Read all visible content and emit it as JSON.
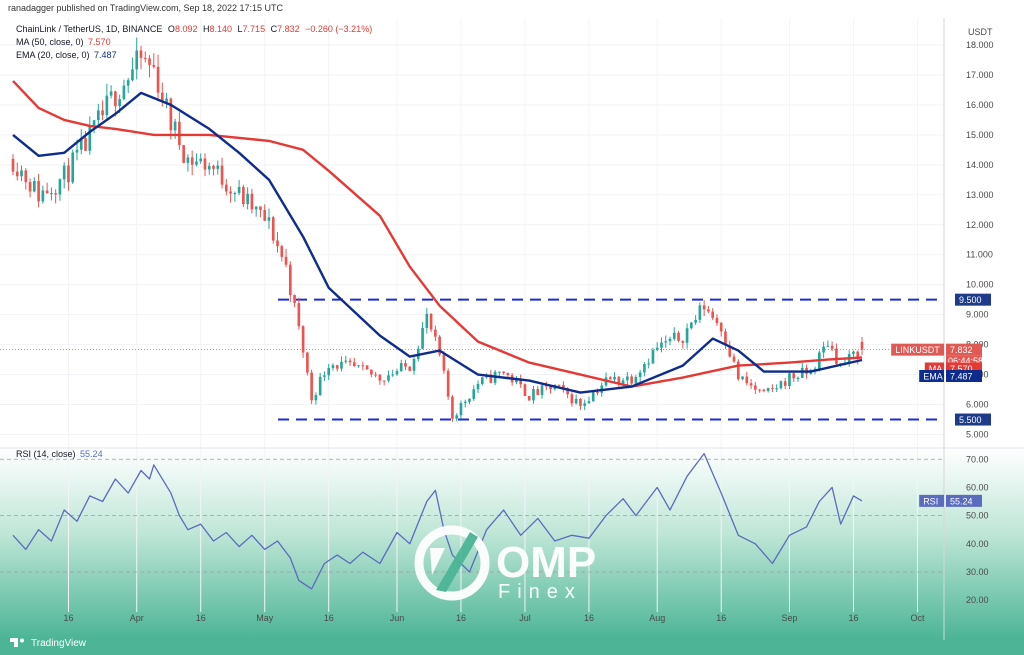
{
  "publish_line": "ranadagger published on TradingView.com, Sep 18, 2022 17:15 UTC",
  "legend": {
    "symbol": "ChainLink / TetherUS, 1D, BINANCE",
    "o_label": "O",
    "o_value": "8.092",
    "h_label": "H",
    "h_value": "8.140",
    "l_label": "L",
    "l_value": "7.715",
    "c_label": "C",
    "c_value": "7.832",
    "change": "−0.260 (−3.21%)",
    "ma_label": "MA (50, close, 0)",
    "ma_value": "7.570",
    "ema_label": "EMA (20, close, 0)",
    "ema_value": "7.487",
    "rsi_label": "RSI (14, close)",
    "rsi_value": "55.24"
  },
  "colors": {
    "up": "#26a69a",
    "down": "#ef5350",
    "ma": "#e53935",
    "ema": "#0d2c8c",
    "rsi_line": "#5b6bbf",
    "level_line": "#1f2bd4",
    "rsi_panel_bottom": "#4db596",
    "price_tag": "#e05a55",
    "level_tag": "#1e3a8a"
  },
  "chart_data": [
    {
      "type": "candlestick",
      "title": "ChainLink / TetherUS, 1D, BINANCE",
      "price_unit": "USDT",
      "y_axis_labels": [
        "18.000",
        "17.000",
        "16.000",
        "15.000",
        "14.000",
        "13.000",
        "12.000",
        "11.000",
        "10.000",
        "9.000",
        "8.000",
        "7.000",
        "6.000",
        "5.000"
      ],
      "x_axis_labels": [
        "16",
        "Apr",
        "16",
        "May",
        "16",
        "Jun",
        "16",
        "Jul",
        "16",
        "Aug",
        "16",
        "Sep",
        "16",
        "Oct"
      ],
      "ylim": [
        4.55,
        18.9
      ],
      "horizontal_levels": [
        {
          "value": 9.5,
          "label": "9.500"
        },
        {
          "value": 5.5,
          "label": "5.500"
        }
      ],
      "price_tags": [
        {
          "name": "LINKUSDT",
          "value": "7.832",
          "sub": "06:44:58"
        },
        {
          "name": "MA",
          "value": "7.570"
        },
        {
          "name": "EMA",
          "value": "7.487"
        }
      ],
      "close_series": [
        {
          "date": "Mar 03",
          "close": 14.2
        },
        {
          "date": "Mar 09",
          "close": 13.0
        },
        {
          "date": "Mar 15",
          "close": 13.6
        },
        {
          "date": "Mar 21",
          "close": 14.9
        },
        {
          "date": "Mar 27",
          "close": 16.4
        },
        {
          "date": "Apr 02",
          "close": 17.5
        },
        {
          "date": "Apr 05",
          "close": 17.2
        },
        {
          "date": "Apr 09",
          "close": 15.4
        },
        {
          "date": "Apr 13",
          "close": 14.2
        },
        {
          "date": "Apr 18",
          "close": 14.0
        },
        {
          "date": "Apr 25",
          "close": 13.0
        },
        {
          "date": "May 02",
          "close": 12.0
        },
        {
          "date": "May 06",
          "close": 10.6
        },
        {
          "date": "May 10",
          "close": 7.8
        },
        {
          "date": "May 12",
          "close": 6.2
        },
        {
          "date": "May 16",
          "close": 7.4
        },
        {
          "date": "May 22",
          "close": 7.2
        },
        {
          "date": "May 28",
          "close": 6.9
        },
        {
          "date": "Jun 04",
          "close": 7.3
        },
        {
          "date": "Jun 08",
          "close": 8.9
        },
        {
          "date": "Jun 11",
          "close": 7.6
        },
        {
          "date": "Jun 14",
          "close": 5.6
        },
        {
          "date": "Jun 20",
          "close": 6.7
        },
        {
          "date": "Jun 26",
          "close": 7.1
        },
        {
          "date": "Jul 02",
          "close": 6.3
        },
        {
          "date": "Jul 08",
          "close": 6.6
        },
        {
          "date": "Jul 14",
          "close": 6.0
        },
        {
          "date": "Jul 20",
          "close": 6.8
        },
        {
          "date": "Jul 26",
          "close": 6.9
        },
        {
          "date": "Aug 01",
          "close": 7.9
        },
        {
          "date": "Aug 07",
          "close": 8.3
        },
        {
          "date": "Aug 12",
          "close": 9.3
        },
        {
          "date": "Aug 16",
          "close": 8.6
        },
        {
          "date": "Aug 20",
          "close": 6.9
        },
        {
          "date": "Aug 26",
          "close": 6.3
        },
        {
          "date": "Sep 01",
          "close": 6.9
        },
        {
          "date": "Sep 06",
          "close": 7.1
        },
        {
          "date": "Sep 10",
          "close": 8.1
        },
        {
          "date": "Sep 13",
          "close": 7.3
        },
        {
          "date": "Sep 18",
          "close": 7.832
        }
      ],
      "ma_series": [
        {
          "date": "Mar 03",
          "value": 16.8
        },
        {
          "date": "Mar 09",
          "value": 15.9
        },
        {
          "date": "Mar 15",
          "value": 15.5
        },
        {
          "date": "Mar 21",
          "value": 15.3
        },
        {
          "date": "Mar 27",
          "value": 15.2
        },
        {
          "date": "Apr 05",
          "value": 15.0
        },
        {
          "date": "Apr 18",
          "value": 15.0
        },
        {
          "date": "May 02",
          "value": 14.8
        },
        {
          "date": "May 10",
          "value": 14.5
        },
        {
          "date": "May 16",
          "value": 13.8
        },
        {
          "date": "May 28",
          "value": 12.3
        },
        {
          "date": "Jun 04",
          "value": 10.6
        },
        {
          "date": "Jun 11",
          "value": 9.3
        },
        {
          "date": "Jun 20",
          "value": 8.1
        },
        {
          "date": "Jul 02",
          "value": 7.4
        },
        {
          "date": "Jul 14",
          "value": 7.0
        },
        {
          "date": "Jul 26",
          "value": 6.6
        },
        {
          "date": "Aug 07",
          "value": 6.9
        },
        {
          "date": "Aug 20",
          "value": 7.3
        },
        {
          "date": "Sep 01",
          "value": 7.4
        },
        {
          "date": "Sep 10",
          "value": 7.5
        },
        {
          "date": "Sep 18",
          "value": 7.57
        }
      ],
      "ema_series": [
        {
          "date": "Mar 03",
          "value": 15.0
        },
        {
          "date": "Mar 09",
          "value": 14.3
        },
        {
          "date": "Mar 15",
          "value": 14.4
        },
        {
          "date": "Mar 21",
          "value": 15.1
        },
        {
          "date": "Mar 27",
          "value": 15.7
        },
        {
          "date": "Apr 02",
          "value": 16.4
        },
        {
          "date": "Apr 09",
          "value": 16.0
        },
        {
          "date": "Apr 18",
          "value": 15.2
        },
        {
          "date": "Apr 25",
          "value": 14.4
        },
        {
          "date": "May 02",
          "value": 13.5
        },
        {
          "date": "May 10",
          "value": 11.6
        },
        {
          "date": "May 16",
          "value": 9.9
        },
        {
          "date": "May 28",
          "value": 8.3
        },
        {
          "date": "Jun 04",
          "value": 7.6
        },
        {
          "date": "Jun 11",
          "value": 7.8
        },
        {
          "date": "Jun 20",
          "value": 7.0
        },
        {
          "date": "Jul 02",
          "value": 6.8
        },
        {
          "date": "Jul 14",
          "value": 6.4
        },
        {
          "date": "Jul 26",
          "value": 6.6
        },
        {
          "date": "Aug 07",
          "value": 7.3
        },
        {
          "date": "Aug 14",
          "value": 8.2
        },
        {
          "date": "Aug 20",
          "value": 7.8
        },
        {
          "date": "Aug 26",
          "value": 7.1
        },
        {
          "date": "Sep 06",
          "value": 7.1
        },
        {
          "date": "Sep 18",
          "value": 7.487
        }
      ]
    },
    {
      "type": "line",
      "title": "RSI (14, close)",
      "y_axis_labels": [
        "70.00",
        "60.00",
        "50.00",
        "40.00",
        "30.00",
        "20.00"
      ],
      "ylim": [
        16.5,
        74
      ],
      "reference_lines": [
        70,
        50,
        30
      ],
      "current": {
        "name": "RSI",
        "value": "55.24"
      },
      "series": [
        {
          "date": "Mar 03",
          "value": 43
        },
        {
          "date": "Mar 06",
          "value": 38
        },
        {
          "date": "Mar 09",
          "value": 45
        },
        {
          "date": "Mar 12",
          "value": 41
        },
        {
          "date": "Mar 15",
          "value": 52
        },
        {
          "date": "Mar 18",
          "value": 48
        },
        {
          "date": "Mar 21",
          "value": 57
        },
        {
          "date": "Mar 24",
          "value": 55
        },
        {
          "date": "Mar 27",
          "value": 63
        },
        {
          "date": "Mar 30",
          "value": 58
        },
        {
          "date": "Apr 02",
          "value": 66
        },
        {
          "date": "Apr 04",
          "value": 63
        },
        {
          "date": "Apr 05",
          "value": 68
        },
        {
          "date": "Apr 09",
          "value": 58
        },
        {
          "date": "Apr 11",
          "value": 50
        },
        {
          "date": "Apr 13",
          "value": 45
        },
        {
          "date": "Apr 16",
          "value": 47
        },
        {
          "date": "Apr 19",
          "value": 41
        },
        {
          "date": "Apr 22",
          "value": 44
        },
        {
          "date": "Apr 25",
          "value": 39
        },
        {
          "date": "Apr 28",
          "value": 43
        },
        {
          "date": "May 01",
          "value": 38
        },
        {
          "date": "May 04",
          "value": 41
        },
        {
          "date": "May 07",
          "value": 35
        },
        {
          "date": "May 09",
          "value": 27
        },
        {
          "date": "May 12",
          "value": 24
        },
        {
          "date": "May 15",
          "value": 33
        },
        {
          "date": "May 18",
          "value": 36
        },
        {
          "date": "May 21",
          "value": 33
        },
        {
          "date": "May 24",
          "value": 37
        },
        {
          "date": "May 28",
          "value": 33
        },
        {
          "date": "Jun 01",
          "value": 44
        },
        {
          "date": "Jun 04",
          "value": 40
        },
        {
          "date": "Jun 08",
          "value": 55
        },
        {
          "date": "Jun 10",
          "value": 59
        },
        {
          "date": "Jun 12",
          "value": 45
        },
        {
          "date": "Jun 14",
          "value": 36
        },
        {
          "date": "Jun 18",
          "value": 30
        },
        {
          "date": "Jun 22",
          "value": 45
        },
        {
          "date": "Jun 26",
          "value": 52
        },
        {
          "date": "Jun 30",
          "value": 43
        },
        {
          "date": "Jul 04",
          "value": 49
        },
        {
          "date": "Jul 08",
          "value": 41
        },
        {
          "date": "Jul 12",
          "value": 43
        },
        {
          "date": "Jul 16",
          "value": 42
        },
        {
          "date": "Jul 20",
          "value": 50
        },
        {
          "date": "Jul 24",
          "value": 56
        },
        {
          "date": "Jul 27",
          "value": 50
        },
        {
          "date": "Aug 01",
          "value": 60
        },
        {
          "date": "Aug 04",
          "value": 52
        },
        {
          "date": "Aug 08",
          "value": 64
        },
        {
          "date": "Aug 12",
          "value": 72
        },
        {
          "date": "Aug 16",
          "value": 58
        },
        {
          "date": "Aug 20",
          "value": 43
        },
        {
          "date": "Aug 24",
          "value": 40
        },
        {
          "date": "Aug 28",
          "value": 33
        },
        {
          "date": "Sep 01",
          "value": 43
        },
        {
          "date": "Sep 05",
          "value": 46
        },
        {
          "date": "Sep 08",
          "value": 55
        },
        {
          "date": "Sep 11",
          "value": 60
        },
        {
          "date": "Sep 13",
          "value": 47
        },
        {
          "date": "Sep 16",
          "value": 57
        },
        {
          "date": "Sep 18",
          "value": 55.24
        }
      ]
    }
  ],
  "footer_brand": "TradingView",
  "watermark": {
    "main": "OMP",
    "sub": "Finex"
  }
}
